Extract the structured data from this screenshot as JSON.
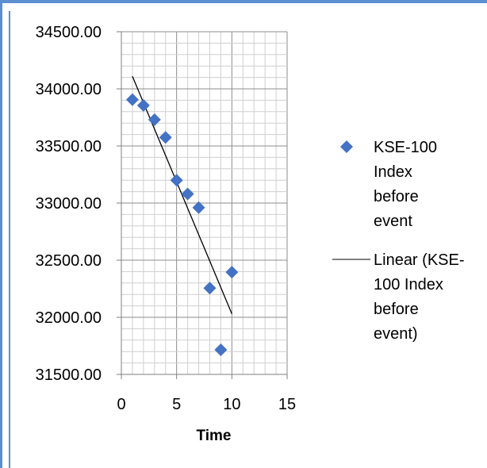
{
  "chart_data": {
    "type": "scatter",
    "title": "",
    "xlabel": "Time",
    "ylabel": "",
    "xlim": [
      0,
      15
    ],
    "ylim": [
      31500,
      34500
    ],
    "x_ticks": [
      "0",
      "5",
      "10",
      "15"
    ],
    "y_ticks": [
      "31500.00",
      "32000.00",
      "32500.00",
      "33000.00",
      "33500.00",
      "34000.00",
      "34500.00"
    ],
    "grid": true,
    "series": [
      {
        "name": "KSE-100 Index before event",
        "marker": "diamond",
        "color": "#4472c4",
        "x": [
          1,
          2,
          3,
          4,
          5,
          6,
          7,
          8,
          9,
          10
        ],
        "y": [
          33905,
          33855,
          33730,
          33575,
          33200,
          33080,
          32960,
          32255,
          31715,
          32395
        ]
      }
    ],
    "trendline": {
      "name": "Linear (KSE-100 Index before event)",
      "color": "#000000",
      "x": [
        1,
        10
      ],
      "y": [
        34110,
        32030
      ]
    },
    "legend": {
      "position": "right",
      "entries": [
        {
          "lines": [
            "KSE-100",
            "Index",
            "before",
            "event"
          ]
        },
        {
          "lines": [
            "Linear (KSE-",
            "100 Index",
            "before",
            "event)"
          ]
        }
      ]
    }
  }
}
